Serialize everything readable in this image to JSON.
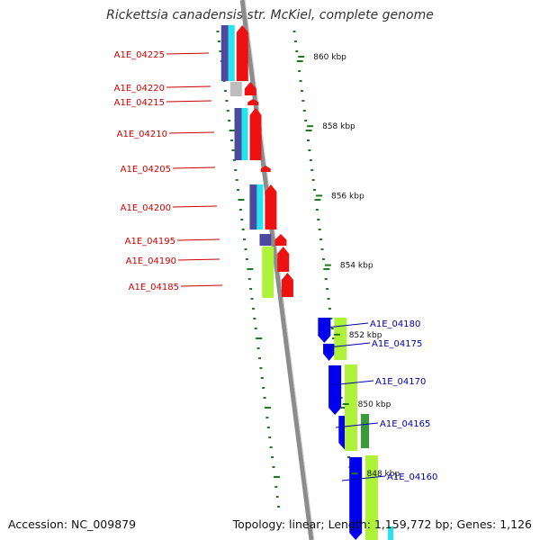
{
  "title": "Rickettsia canadensis str. McKiel, complete genome",
  "accession_text": "Accession: NC_009879",
  "summary_text": "Topology: linear; Length: 1,159,772 bp; Genes: 1,126",
  "colors": {
    "backbone": "#8c8c8c",
    "tick": "#1f7a1f",
    "left_label": "#cc0000",
    "right_label": "#0000aa",
    "red_feature": "#ee1111",
    "blue_feature": "#0000ee",
    "cyan": "#22e5f0",
    "indigo": "#4b4a9e",
    "lime": "#aef23a",
    "dark_green": "#3a9a3a",
    "gray": "#bdbdbd"
  },
  "scale_labels": [
    {
      "kbp": 860,
      "label": "860 kbp"
    },
    {
      "kbp": 858,
      "label": "858 kbp"
    },
    {
      "kbp": 856,
      "label": "856 kbp"
    },
    {
      "kbp": 854,
      "label": "854 kbp"
    },
    {
      "kbp": 852,
      "label": "852 kbp"
    },
    {
      "kbp": 850,
      "label": "850 kbp"
    },
    {
      "kbp": 848,
      "label": "848 kbp"
    }
  ],
  "left_genes": [
    "A1E_04225",
    "A1E_04220",
    "A1E_04215",
    "A1E_04210",
    "A1E_04205",
    "A1E_04200",
    "A1E_04195",
    "A1E_04190",
    "A1E_04185"
  ],
  "right_genes": [
    "A1E_04180",
    "A1E_04175",
    "A1E_04170",
    "A1E_04165",
    "A1E_04160"
  ]
}
